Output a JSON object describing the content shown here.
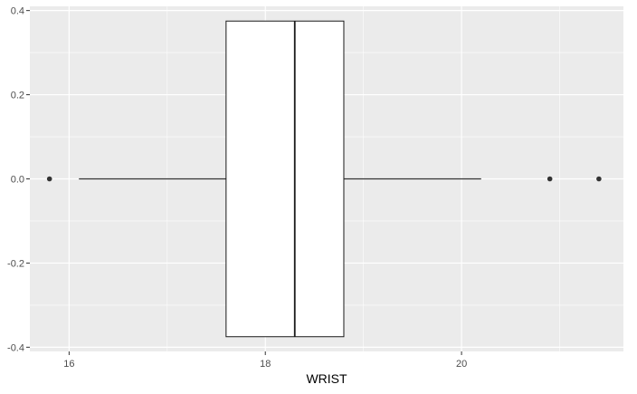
{
  "chart_data": {
    "type": "boxplot",
    "title": "",
    "xlabel": "WRIST",
    "ylabel": "",
    "orientation": "horizontal",
    "xlim": [
      15.6,
      21.65
    ],
    "ylim": [
      -0.41,
      0.41
    ],
    "x_ticks": [
      16,
      18,
      20
    ],
    "y_ticks": [
      -0.4,
      -0.2,
      0.0,
      0.2,
      0.4
    ],
    "y_tick_labels": [
      "-0.4",
      "-0.2",
      "0.0",
      "0.2",
      "0.4"
    ],
    "grid": true,
    "legend": "none",
    "box": {
      "q1": 17.6,
      "median": 18.3,
      "q3": 18.8,
      "whisker_low": 16.1,
      "whisker_high": 20.2,
      "y_center": 0.0,
      "y_half_width": 0.375
    },
    "outliers": [
      15.8,
      20.9,
      21.4
    ],
    "colors": {
      "panel": "#ebebeb",
      "grid_major": "#ffffff",
      "box_fill": "#ffffff",
      "box_line": "#1a1a1a",
      "whisker": "#333333",
      "outlier": "#333333"
    }
  }
}
